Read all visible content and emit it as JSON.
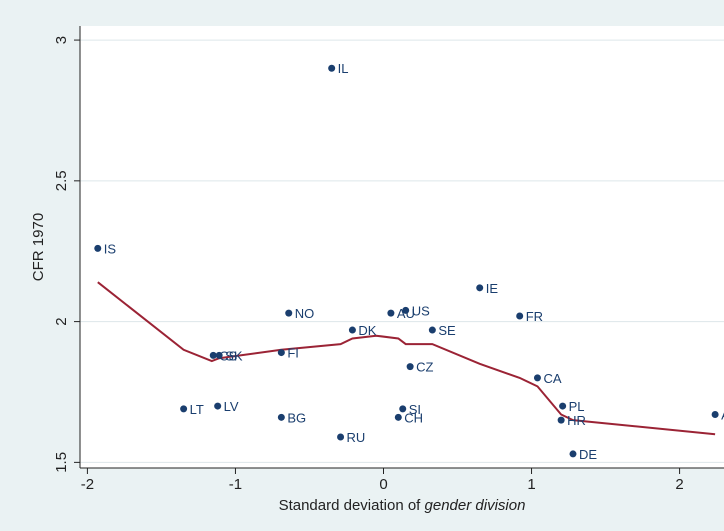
{
  "chart_data": {
    "type": "scatter",
    "title": "",
    "xlabel_prefix": "Standard deviation of ",
    "xlabel_italic": "gender division",
    "ylabel": "CFR 1970",
    "xlim": [
      -2.05,
      2.3
    ],
    "ylim": [
      1.48,
      3.05
    ],
    "xticks": [
      -2,
      -1,
      0,
      1,
      2
    ],
    "xtick_labels": [
      "-2",
      "-1",
      "0",
      "1",
      "2"
    ],
    "yticks": [
      1.5,
      2,
      2.5,
      3
    ],
    "ytick_labels": [
      "1.5",
      "2",
      "2.5",
      "3"
    ],
    "grid": "horizontal",
    "colors": {
      "points": "#1a3e6e",
      "labels": "#1a3e6e",
      "fit_line": "#9b2335",
      "plot_bg": "#ffffff",
      "page_bg": "#eaf2f3"
    },
    "points": [
      {
        "label": "IL",
        "x": -0.35,
        "y": 2.9
      },
      {
        "label": "IS",
        "x": -1.93,
        "y": 2.26
      },
      {
        "label": "IE",
        "x": 0.65,
        "y": 2.12
      },
      {
        "label": "NO",
        "x": -0.64,
        "y": 2.03
      },
      {
        "label": "AU",
        "x": 0.05,
        "y": 2.03
      },
      {
        "label": "US",
        "x": 0.15,
        "y": 2.04
      },
      {
        "label": "FR",
        "x": 0.92,
        "y": 2.02
      },
      {
        "label": "DK",
        "x": -0.21,
        "y": 1.97
      },
      {
        "label": "SE",
        "x": 0.33,
        "y": 1.97
      },
      {
        "label": "CS",
        "x": -1.15,
        "y": 1.88
      },
      {
        "label": "SK",
        "x": -1.11,
        "y": 1.88
      },
      {
        "label": "FI",
        "x": -0.69,
        "y": 1.89
      },
      {
        "label": "CZ",
        "x": 0.18,
        "y": 1.84
      },
      {
        "label": "CA",
        "x": 1.04,
        "y": 1.8
      },
      {
        "label": "LT",
        "x": -1.35,
        "y": 1.69
      },
      {
        "label": "LV",
        "x": -1.12,
        "y": 1.7
      },
      {
        "label": "PL",
        "x": 1.21,
        "y": 1.7
      },
      {
        "label": "SI",
        "x": 0.13,
        "y": 1.69
      },
      {
        "label": "BG",
        "x": -0.69,
        "y": 1.66
      },
      {
        "label": "CH",
        "x": 0.1,
        "y": 1.66
      },
      {
        "label": "HR",
        "x": 1.2,
        "y": 1.65
      },
      {
        "label": "A",
        "x": 2.24,
        "y": 1.67
      },
      {
        "label": "RU",
        "x": -0.29,
        "y": 1.59
      },
      {
        "label": "DE",
        "x": 1.28,
        "y": 1.53
      }
    ],
    "fit_line": {
      "x": [
        -1.93,
        -1.35,
        -1.16,
        -1.11,
        -0.69,
        -0.29,
        -0.21,
        -0.05,
        0.1,
        0.15,
        0.33,
        0.65,
        0.92,
        1.04,
        1.2,
        1.28,
        2.24
      ],
      "y": [
        2.14,
        1.9,
        1.86,
        1.87,
        1.9,
        1.92,
        1.94,
        1.95,
        1.94,
        1.92,
        1.92,
        1.85,
        1.8,
        1.77,
        1.67,
        1.65,
        1.6
      ]
    }
  }
}
